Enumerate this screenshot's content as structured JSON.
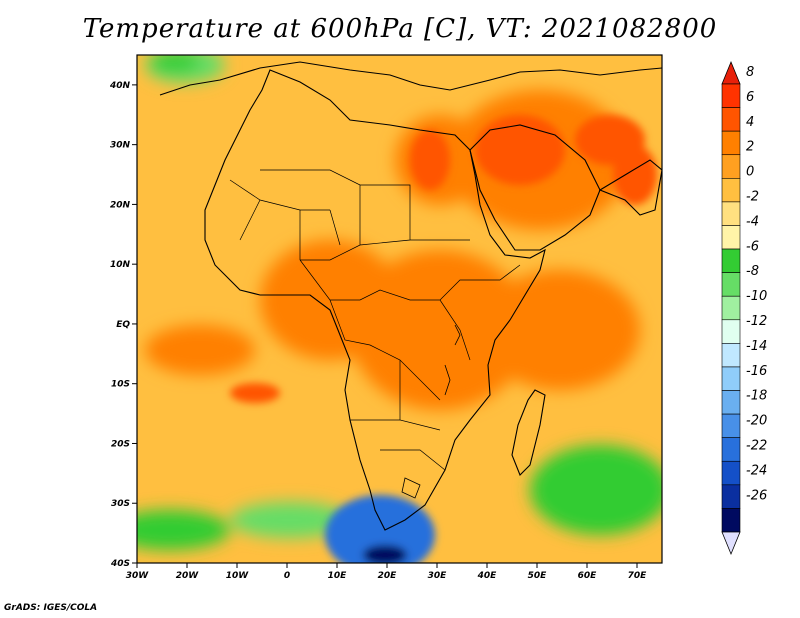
{
  "title": "Temperature at 600hPa [C], VT: 2021082800",
  "credit": "GrADS: IGES/COLA",
  "map": {
    "lon_range": [
      -30,
      75
    ],
    "lat_range": [
      -40,
      45
    ],
    "x_ticks": [
      "30W",
      "20W",
      "10W",
      "0",
      "10E",
      "20E",
      "30E",
      "40E",
      "50E",
      "60E",
      "70E"
    ],
    "y_ticks": [
      "40N",
      "30N",
      "20N",
      "10N",
      "EQ",
      "10S",
      "20S",
      "30S",
      "40S"
    ]
  },
  "colorbar": {
    "labels": [
      "8",
      "6",
      "4",
      "2",
      "0",
      "-2",
      "-4",
      "-6",
      "-8",
      "-10",
      "-12",
      "-14",
      "-16",
      "-18",
      "-20",
      "-22",
      "-24",
      "-26"
    ],
    "colors": [
      "#ff3300",
      "#ff5500",
      "#ff8000",
      "#ffa020",
      "#ffbf40",
      "#ffe080",
      "#fff4a8",
      "#33cc33",
      "#66dd66",
      "#a0f0a0",
      "#e0fff0",
      "#c0e8ff",
      "#90cdfa",
      "#6aaff0",
      "#4890e8",
      "#2870dc",
      "#1450c8",
      "#0a2fa0",
      "#000a60"
    ],
    "top_cap_color": "#e8200a",
    "bottom_cap_color": "#e0e0ff"
  },
  "palette": {
    "warm_base": "#ffbf40",
    "hot": "#ff8000",
    "hotter": "#ff5500",
    "cool_green": "#33cc33",
    "light_green": "#66dd66",
    "cold_blue": "#2870dc",
    "coldest": "#000a60"
  }
}
